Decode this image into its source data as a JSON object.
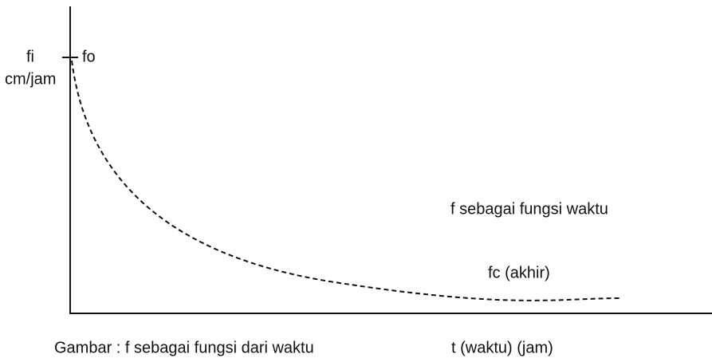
{
  "axis_labels": {
    "y_symbol": "fi",
    "y_unit": "cm/jam",
    "x": "t (waktu) (jam)"
  },
  "curve_labels": {
    "start": "fo",
    "description": "f sebagai fungsi waktu",
    "end": "fc (akhir)"
  },
  "caption": "Gambar : f sebagai fungsi dari waktu"
}
